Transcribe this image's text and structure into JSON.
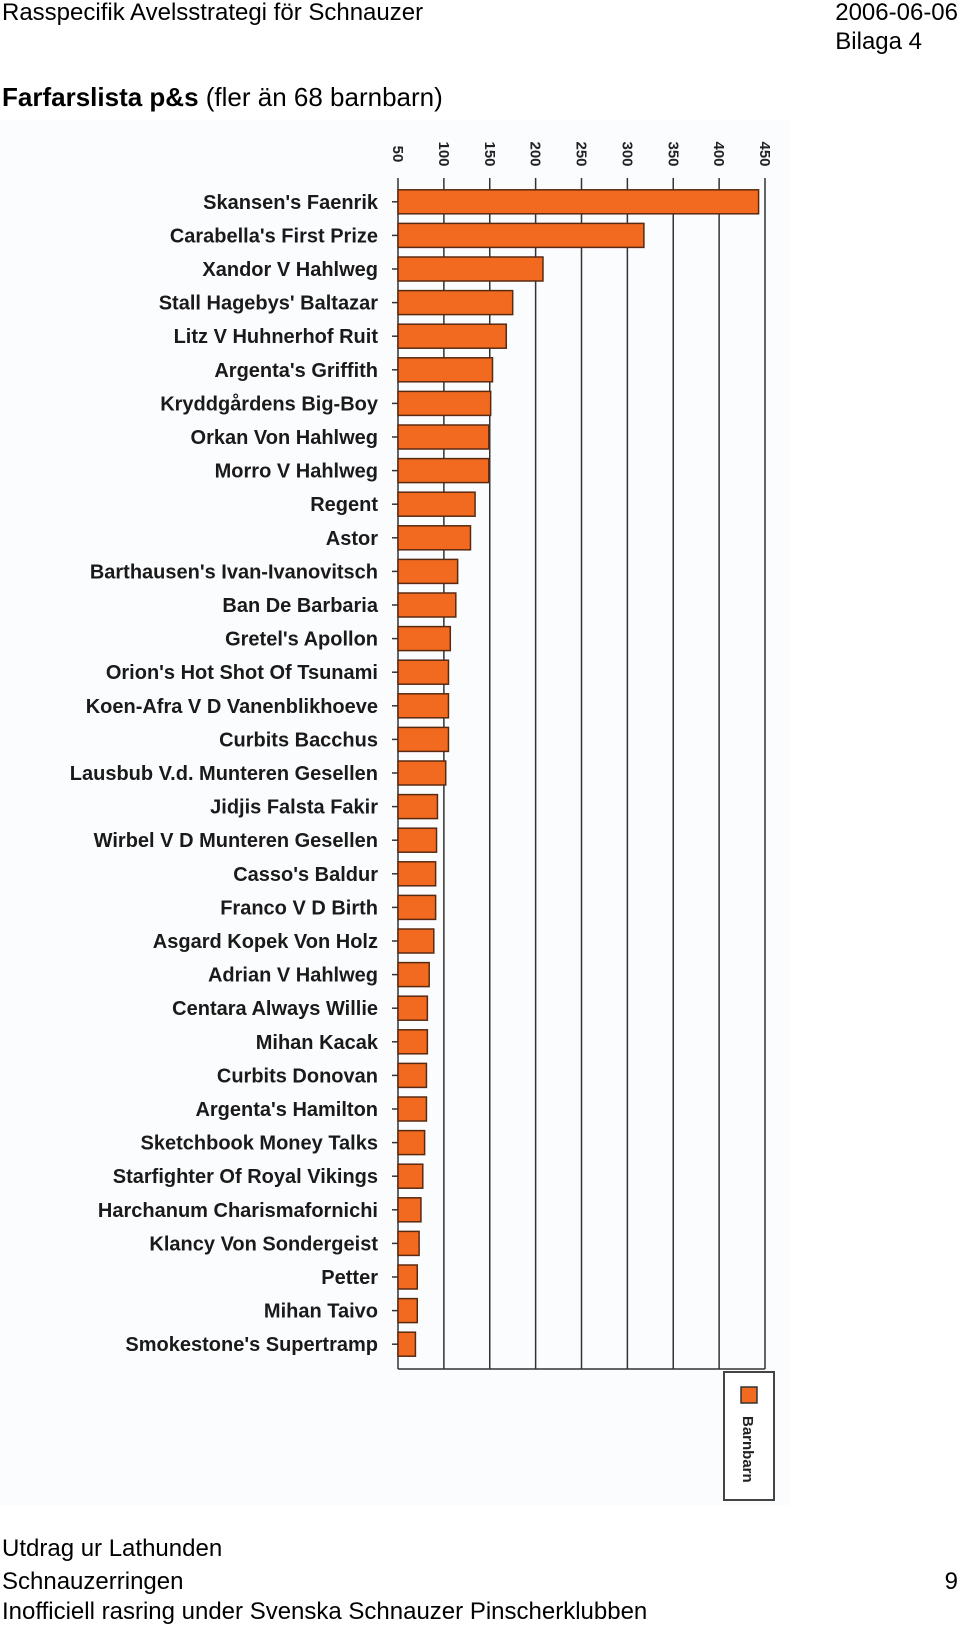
{
  "header": {
    "title": "Rasspecifik Avelsstrategi för Schnauzer",
    "date": "2006-06-06",
    "appendix": "Bilaga 4"
  },
  "section": {
    "title_bold": "Farfarslista p&s",
    "title_rest": "(fler än 68 barnbarn)"
  },
  "chart_data": {
    "type": "bar",
    "orientation": "horizontal",
    "xlim": [
      50,
      450
    ],
    "ticks": [
      50,
      100,
      150,
      200,
      250,
      300,
      350,
      400,
      450
    ],
    "grid": true,
    "legend_position": "bottom-right",
    "bar_color": "#f26a1f",
    "series": [
      {
        "name": "Barnbarn"
      }
    ],
    "categories": [
      "Skansen's Faenrik",
      "Carabella's First Prize",
      "Xandor V Hahlweg",
      "Stall Hagebys' Baltazar",
      "Litz V Huhnerhof Ruit",
      "Argenta's Griffith",
      "Kryddgårdens Big-Boy",
      "Orkan Von Hahlweg",
      "Morro V Hahlweg",
      "Regent",
      "Astor",
      "Barthausen's Ivan-Ivanovitsch",
      "Ban De Barbaria",
      "Gretel's Apollon",
      "Orion's Hot Shot Of Tsunami",
      "Koen-Afra V D Vanenblikhoeve",
      "Curbits Bacchus",
      "Lausbub V.d. Munteren Gesellen",
      "Jidjis Falsta Fakir",
      "Wirbel V D Munteren Gesellen",
      "Casso's Baldur",
      "Franco V D Birth",
      "Asgard Kopek Von Holz",
      "Adrian V Hahlweg",
      "Centara Always Willie",
      "Mihan Kacak",
      "Curbits Donovan",
      "Argenta's Hamilton",
      "Sketchbook Money Talks",
      "Starfighter Of Royal Vikings",
      "Harchanum Charismafornichi",
      "Klancy Von Sondergeist",
      "Petter",
      "Mihan Taivo",
      "Smokestone's Supertramp"
    ],
    "values": [
      443,
      318,
      208,
      175,
      168,
      153,
      151,
      149,
      149,
      134,
      129,
      115,
      113,
      107,
      105,
      105,
      105,
      102,
      93,
      92,
      91,
      91,
      89,
      84,
      82,
      82,
      81,
      81,
      79,
      77,
      75,
      73,
      71,
      71,
      69
    ]
  },
  "footer": {
    "line1": "Utdrag ur Lathunden",
    "line2": "Schnauzerringen",
    "page_number": "9",
    "line3": "Inofficiell rasring under Svenska Schnauzer Pinscherklubben"
  }
}
